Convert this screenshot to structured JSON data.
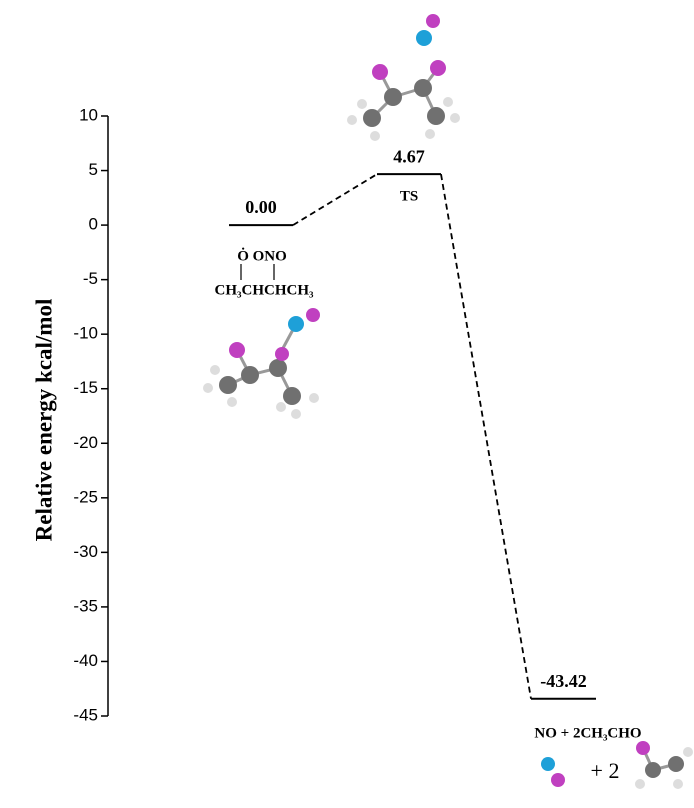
{
  "chart_data": {
    "type": "energy_profile",
    "ylabel": "Relative energy kcal/mol",
    "ylim": [
      -45,
      10
    ],
    "yticks": [
      10,
      5,
      0,
      -5,
      -10,
      -15,
      -20,
      -25,
      -30,
      -35,
      -40,
      -45
    ],
    "values": [
      0,
      4.67,
      -43.42
    ],
    "value_labels": [
      "0.00",
      "4.67",
      "-43.42"
    ],
    "level_labels": [
      [
        "Ȯ   ONO",
        "CH₃CHCHCH₃"
      ],
      [
        "TS"
      ],
      [
        "NO  +  2CH₃CHO"
      ]
    ],
    "annotations": [
      "+ 2"
    ],
    "color": "#000000"
  }
}
